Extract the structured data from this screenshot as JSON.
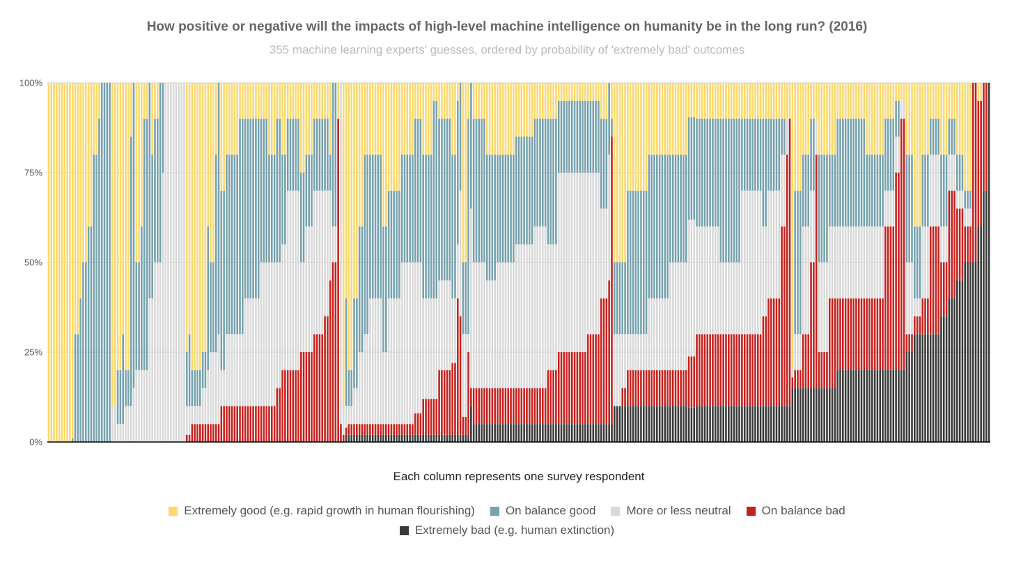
{
  "chart_data": {
    "type": "bar",
    "stacked": "percent",
    "title": "How positive or negative will the impacts of high-level machine intelligence on humanity be in the long run? (2016)",
    "subtitle": "355 machine learning experts' guesses, ordered by probability of 'extremely bad' outcomes",
    "xlabel": "Each column represents one survey respondent",
    "ylabel": "",
    "ylim": [
      0,
      100
    ],
    "yticks": [
      "0%",
      "25%",
      "50%",
      "75%",
      "100%"
    ],
    "ytick_values": [
      0,
      25,
      50,
      75,
      100
    ],
    "grid": true,
    "legend_position": "bottom",
    "respondent_count": 355,
    "series": [
      {
        "name": "Extremely good (e.g. rapid growth in human flourishing)",
        "color": "#fcd96e"
      },
      {
        "name": "On balance good",
        "color": "#77a2ae"
      },
      {
        "name": "More or less neutral",
        "color": "#d9d9d9"
      },
      {
        "name": "On balance bad",
        "color": "#c5221f"
      },
      {
        "name": "Extremely bad (e.g. human extinction)",
        "color": "#3a3a3a"
      }
    ],
    "stack_order_bottom_to_top": [
      "Extremely bad (e.g. human extinction)",
      "On balance bad",
      "More or less neutral",
      "On balance good",
      "Extremely good (e.g. rapid growth in human flourishing)"
    ],
    "respondent_runs_note": "each run = [number of consecutive respondents, extremely good %, on balance good %, neutral %, on balance bad %, extremely bad %] (approximate)",
    "respondent_runs": [
      [
        9,
        100,
        0,
        0,
        0,
        0
      ],
      [
        1,
        99,
        1,
        0,
        0,
        0
      ],
      [
        2,
        70,
        30,
        0,
        0,
        0
      ],
      [
        1,
        60,
        40,
        0,
        0,
        0
      ],
      [
        2,
        50,
        50,
        0,
        0,
        0
      ],
      [
        2,
        40,
        60,
        0,
        0,
        0
      ],
      [
        2,
        20,
        80,
        0,
        0,
        0
      ],
      [
        1,
        10,
        90,
        0,
        0,
        0
      ],
      [
        4,
        0,
        100,
        0,
        0,
        0
      ],
      [
        2,
        90,
        0,
        10,
        0,
        0
      ],
      [
        2,
        80,
        15,
        5,
        0,
        0
      ],
      [
        1,
        70,
        25,
        5,
        0,
        0
      ],
      [
        2,
        80,
        10,
        10,
        0,
        0
      ],
      [
        1,
        15,
        75,
        10,
        0,
        0
      ],
      [
        1,
        0,
        85,
        15,
        0,
        0
      ],
      [
        2,
        50,
        30,
        20,
        0,
        0
      ],
      [
        1,
        40,
        40,
        20,
        0,
        0
      ],
      [
        2,
        10,
        70,
        20,
        0,
        0
      ],
      [
        1,
        0,
        60,
        40,
        0,
        0
      ],
      [
        1,
        20,
        40,
        40,
        0,
        0
      ],
      [
        2,
        10,
        40,
        50,
        0,
        0
      ],
      [
        1,
        0,
        50,
        50,
        0,
        0
      ],
      [
        1,
        0,
        25,
        75,
        0,
        0
      ],
      [
        8,
        0,
        0,
        100,
        0,
        0
      ],
      [
        1,
        75,
        15,
        8,
        2,
        0
      ],
      [
        1,
        70,
        20,
        8,
        2,
        0
      ],
      [
        4,
        80,
        10,
        5,
        5,
        0
      ],
      [
        2,
        75,
        10,
        10,
        5,
        0
      ],
      [
        1,
        40,
        40,
        15,
        5,
        0
      ],
      [
        2,
        50,
        25,
        20,
        5,
        0
      ],
      [
        1,
        20,
        55,
        20,
        5,
        0
      ],
      [
        1,
        0,
        70,
        25,
        5,
        0
      ],
      [
        2,
        30,
        50,
        10,
        10,
        0
      ],
      [
        5,
        20,
        50,
        20,
        10,
        0
      ],
      [
        2,
        10,
        60,
        20,
        10,
        0
      ],
      [
        6,
        10,
        50,
        30,
        10,
        0
      ],
      [
        3,
        10,
        40,
        40,
        10,
        0
      ],
      [
        3,
        20,
        30,
        40,
        10,
        0
      ],
      [
        2,
        10,
        40,
        35,
        15,
        0
      ],
      [
        2,
        20,
        25,
        35,
        20,
        0
      ],
      [
        5,
        10,
        20,
        50,
        20,
        0
      ],
      [
        2,
        25,
        25,
        25,
        25,
        0
      ],
      [
        3,
        20,
        20,
        35,
        25,
        0
      ],
      [
        4,
        10,
        20,
        40,
        30,
        0
      ],
      [
        2,
        10,
        20,
        35,
        35,
        0
      ],
      [
        1,
        20,
        10,
        25,
        45,
        0
      ],
      [
        2,
        0,
        40,
        10,
        50,
        0
      ],
      [
        1,
        10,
        0,
        0,
        90,
        0
      ],
      [
        1,
        0,
        0,
        95,
        5,
        0
      ],
      [
        1,
        90,
        0,
        8,
        2,
        0
      ],
      [
        1,
        60,
        30,
        6,
        2,
        2
      ],
      [
        2,
        80,
        10,
        5,
        3,
        2
      ],
      [
        2,
        60,
        25,
        10,
        3,
        2
      ],
      [
        2,
        40,
        35,
        20,
        3,
        2
      ],
      [
        2,
        20,
        50,
        25,
        3,
        2
      ],
      [
        5,
        20,
        40,
        35,
        3,
        2
      ],
      [
        2,
        40,
        35,
        20,
        3,
        2
      ],
      [
        5,
        30,
        30,
        35,
        3,
        2
      ],
      [
        5,
        20,
        30,
        45,
        3,
        2
      ],
      [
        3,
        10,
        40,
        42,
        6,
        2
      ],
      [
        4,
        20,
        40,
        28,
        10,
        2
      ],
      [
        2,
        5,
        55,
        28,
        10,
        2
      ],
      [
        5,
        10,
        45,
        25,
        18,
        2
      ],
      [
        2,
        20,
        40,
        18,
        20,
        2
      ],
      [
        1,
        5,
        40,
        15,
        38,
        2
      ],
      [
        1,
        0,
        30,
        35,
        33,
        2
      ],
      [
        2,
        50,
        20,
        23,
        5,
        2
      ],
      [
        1,
        10,
        60,
        5,
        23,
        2
      ],
      [
        1,
        0,
        35,
        50,
        5,
        10
      ],
      [
        5,
        10,
        40,
        35,
        10,
        5
      ],
      [
        4,
        20,
        35,
        30,
        10,
        5
      ],
      [
        7,
        20,
        30,
        35,
        10,
        5
      ],
      [
        7,
        15,
        30,
        40,
        10,
        5
      ],
      [
        5,
        10,
        30,
        45,
        10,
        5
      ],
      [
        4,
        10,
        35,
        35,
        15,
        5
      ],
      [
        11,
        5,
        20,
        50,
        20,
        5
      ],
      [
        5,
        5,
        20,
        45,
        25,
        5
      ],
      [
        3,
        10,
        25,
        25,
        35,
        5
      ],
      [
        1,
        0,
        20,
        35,
        40,
        5
      ],
      [
        1,
        10,
        5,
        0,
        80,
        5
      ],
      [
        3,
        50,
        20,
        20,
        0,
        10
      ],
      [
        2,
        50,
        20,
        15,
        5,
        10
      ],
      [
        8,
        30,
        40,
        10,
        10,
        10
      ],
      [
        8,
        20,
        40,
        20,
        10,
        10
      ],
      [
        7,
        20,
        30,
        30,
        10,
        10
      ],
      [
        3,
        10,
        30,
        40,
        15,
        10
      ],
      [
        9,
        10,
        30,
        30,
        20,
        10
      ],
      [
        8,
        10,
        40,
        20,
        20,
        10
      ],
      [
        8,
        10,
        20,
        40,
        20,
        10
      ],
      [
        2,
        10,
        30,
        25,
        25,
        10
      ],
      [
        5,
        10,
        20,
        30,
        30,
        10
      ],
      [
        2,
        10,
        10,
        20,
        50,
        10
      ],
      [
        1,
        10,
        0,
        10,
        70,
        10
      ],
      [
        1,
        10,
        0,
        0,
        80,
        10
      ],
      [
        1,
        80,
        0,
        2,
        3,
        15
      ],
      [
        3,
        30,
        40,
        10,
        5,
        15
      ],
      [
        3,
        20,
        20,
        30,
        15,
        15
      ],
      [
        2,
        10,
        20,
        20,
        35,
        15
      ],
      [
        1,
        10,
        0,
        10,
        65,
        15
      ],
      [
        4,
        20,
        30,
        25,
        10,
        15
      ],
      [
        3,
        20,
        20,
        20,
        25,
        15
      ],
      [
        3,
        10,
        30,
        20,
        20,
        20
      ],
      [
        8,
        10,
        30,
        20,
        20,
        20
      ],
      [
        7,
        20,
        20,
        20,
        20,
        20
      ],
      [
        4,
        10,
        20,
        10,
        40,
        20
      ],
      [
        2,
        5,
        10,
        10,
        55,
        20
      ],
      [
        2,
        5,
        0,
        5,
        70,
        20
      ],
      [
        3,
        20,
        30,
        20,
        5,
        25
      ],
      [
        3,
        40,
        20,
        5,
        5,
        30
      ],
      [
        3,
        20,
        20,
        20,
        10,
        30
      ],
      [
        4,
        10,
        10,
        20,
        30,
        30
      ],
      [
        3,
        20,
        20,
        10,
        15,
        35
      ],
      [
        3,
        10,
        10,
        10,
        30,
        40
      ],
      [
        3,
        20,
        10,
        5,
        20,
        45
      ],
      [
        3,
        30,
        5,
        5,
        10,
        50
      ],
      [
        2,
        0,
        0,
        0,
        50,
        50
      ],
      [
        2,
        5,
        0,
        0,
        35,
        60
      ],
      [
        2,
        0,
        0,
        0,
        30,
        70
      ],
      [
        1,
        0,
        0,
        0,
        0,
        100
      ]
    ]
  }
}
